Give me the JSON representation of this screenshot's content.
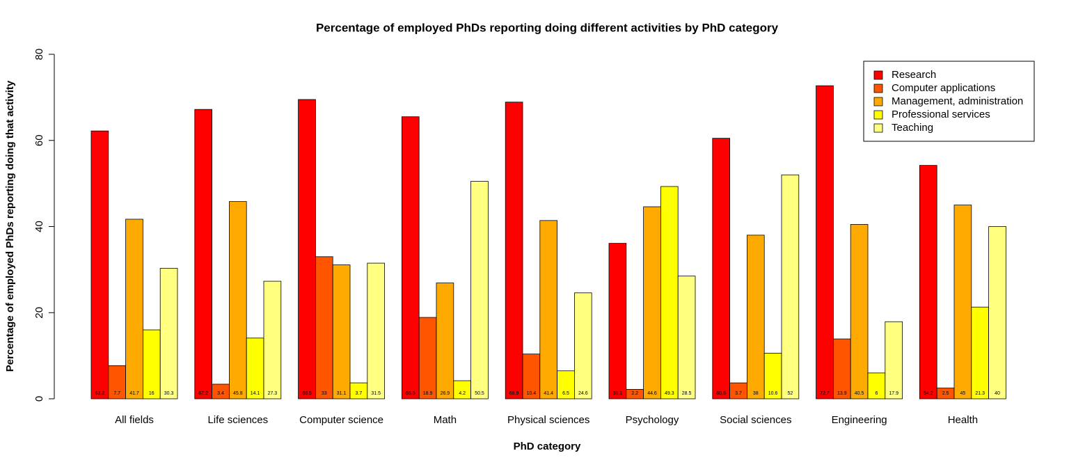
{
  "chart_data": {
    "type": "bar",
    "title": "Percentage of employed PhDs reporting doing different activities by PhD category",
    "x_label": "PhD category",
    "y_label": "Percentage of employed PhDs reporting doing that activity",
    "categories": [
      "All fields",
      "Life sciences",
      "Computer science",
      "Math",
      "Physical sciences",
      "Psychology",
      "Social sciences",
      "Engineering",
      "Health"
    ],
    "series": [
      {
        "name": "Research",
        "color": "#ff0000",
        "values": [
          62.2,
          67.2,
          69.5,
          65.5,
          68.9,
          36.1,
          60.5,
          72.7,
          54.2
        ]
      },
      {
        "name": "Computer applications",
        "color": "#ff5500",
        "values": [
          7.7,
          3.4,
          33,
          18.9,
          10.4,
          2.2,
          3.7,
          13.9,
          2.5
        ]
      },
      {
        "name": "Management, administration",
        "color": "#ffaa00",
        "values": [
          41.7,
          45.8,
          31.1,
          26.9,
          41.4,
          44.6,
          38,
          40.5,
          45
        ]
      },
      {
        "name": "Professional services",
        "color": "#ffff00",
        "values": [
          16,
          14.1,
          3.7,
          4.2,
          6.5,
          49.3,
          10.6,
          6,
          21.3
        ]
      },
      {
        "name": "Teaching",
        "color": "#ffff80",
        "values": [
          30.3,
          27.3,
          31.5,
          50.5,
          24.6,
          28.5,
          52,
          17.9,
          40
        ]
      }
    ],
    "ylim": [
      0,
      80
    ],
    "yticks": [
      0,
      20,
      40,
      60,
      80
    ],
    "legend": "topright"
  }
}
